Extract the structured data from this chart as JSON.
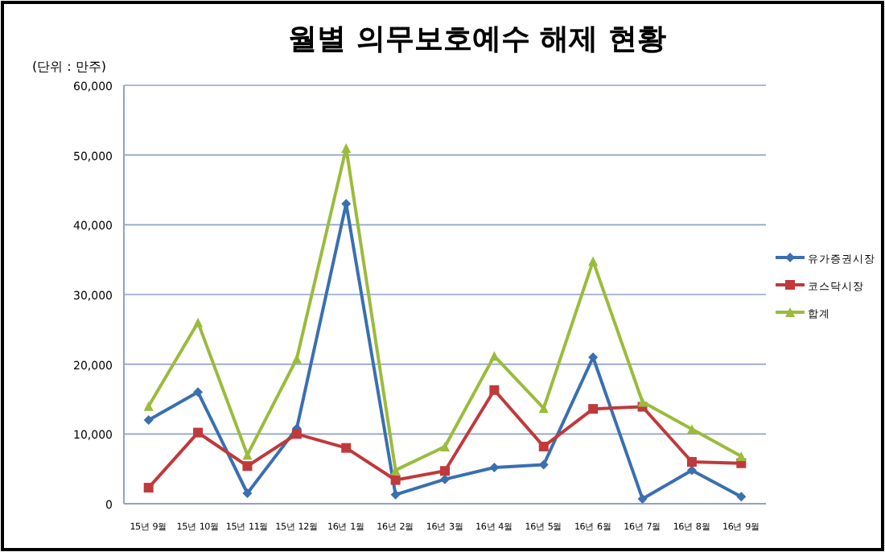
{
  "chart_data": {
    "type": "line",
    "title": "월별 의무보호예수 해제 현황",
    "annotations": [
      "(단위 : 만주)"
    ],
    "categories": [
      "15년 9월",
      "15년 10월",
      "15년 11월",
      "15년 12월",
      "16년 1월",
      "16년 2월",
      "16년 3월",
      "16년 4월",
      "16년 5월",
      "16년 6월",
      "16년 7월",
      "16년 8월",
      "16년 9월"
    ],
    "series": [
      {
        "name": "유가증권시장",
        "color": "#3a6fb0",
        "marker": "diamond",
        "values": [
          12000,
          16000,
          1500,
          10800,
          43000,
          1300,
          3500,
          5200,
          5600,
          21000,
          700,
          4800,
          1000
        ]
      },
      {
        "name": "코스닥시장",
        "color": "#c0393b",
        "marker": "square",
        "values": [
          2300,
          10200,
          5400,
          10000,
          8000,
          3400,
          4700,
          16300,
          8200,
          13600,
          13900,
          6000,
          5800
        ]
      },
      {
        "name": "합계",
        "color": "#9bbb3c",
        "marker": "triangle",
        "values": [
          14000,
          26000,
          7000,
          20800,
          51000,
          4800,
          8200,
          21200,
          13700,
          34800,
          14600,
          10700,
          6800
        ]
      }
    ],
    "ylim": [
      0,
      60000
    ],
    "yticks": [
      0,
      {
        "value": 10000,
        "label": "10,000"
      },
      {
        "value": 20000,
        "label": "20,000"
      },
      {
        "value": 30000,
        "label": "30,000"
      },
      {
        "value": 40000,
        "label": "40,000"
      },
      {
        "value": 50000,
        "label": "50,000"
      },
      {
        "value": 60000,
        "label": "60,000"
      }
    ],
    "grid": "y",
    "legend": "right"
  }
}
